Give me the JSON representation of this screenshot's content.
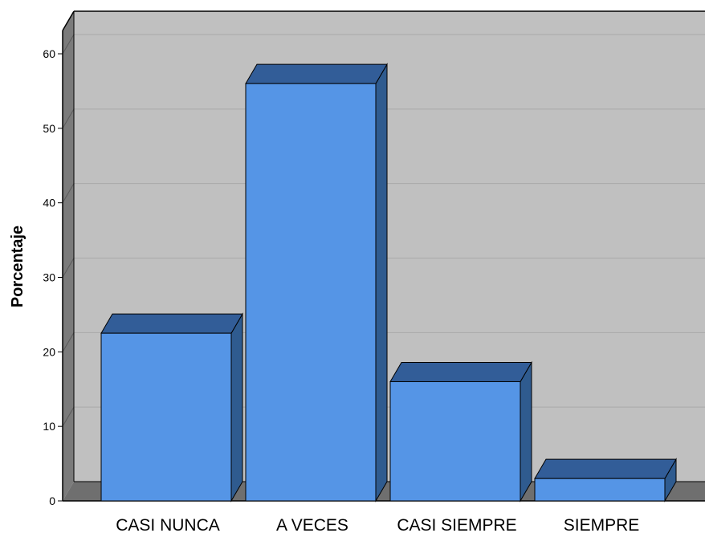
{
  "chart_data": {
    "type": "bar",
    "title": "",
    "xlabel": "",
    "ylabel": "Porcentaje",
    "categories": [
      "CASI NUNCA",
      "A VECES",
      "CASI SIEMPRE",
      "SIEMPRE"
    ],
    "values": [
      22.5,
      56.0,
      16.0,
      3.0
    ],
    "ylim": [
      0,
      60
    ],
    "yticks": [
      "0",
      "10",
      "20",
      "30",
      "40",
      "50",
      "60"
    ],
    "grid": true,
    "style": "3d",
    "colors": {
      "bar_front": "#5595e6",
      "bar_top": "#325d98",
      "bar_side": "#2f5b8f",
      "plot_background": "#c0c0c0",
      "left_wall": "#7b7b7b",
      "floor": "#6f6f6f",
      "gridline": "#a9a9a9"
    }
  }
}
